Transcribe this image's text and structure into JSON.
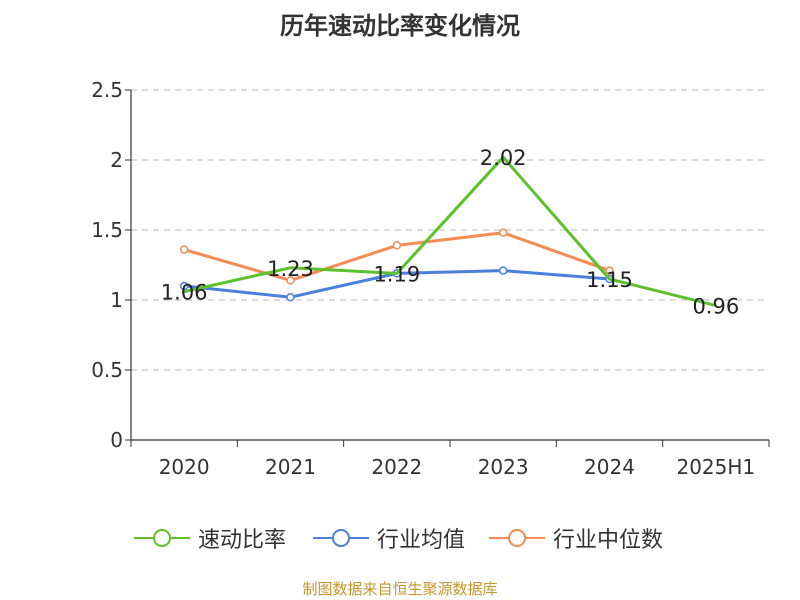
{
  "chart_data": {
    "type": "line",
    "title": "历年速动比率变化情况",
    "categories": [
      "2020",
      "2021",
      "2022",
      "2023",
      "2024",
      "2025H1"
    ],
    "ylim": [
      0,
      2.5
    ],
    "yticks": [
      "0",
      "0.5",
      "1",
      "1.5",
      "2",
      "2.5"
    ],
    "grid": true,
    "legend_position": "bottom",
    "series": [
      {
        "name": "速动比率",
        "color": "#5cc12a",
        "values": [
          1.06,
          1.23,
          1.19,
          2.02,
          1.15,
          0.96
        ],
        "labels": [
          "1.06",
          "1.23",
          "1.19",
          "2.02",
          "1.15",
          "0.96"
        ]
      },
      {
        "name": "行业均值",
        "color": "#4a7fdc",
        "values": [
          1.1,
          1.02,
          1.19,
          1.21,
          1.15,
          null
        ]
      },
      {
        "name": "行业中位数",
        "color": "#f58b55",
        "values": [
          1.36,
          1.14,
          1.39,
          1.48,
          1.21,
          null
        ]
      }
    ]
  },
  "source": "制图数据来自恒生聚源数据库"
}
